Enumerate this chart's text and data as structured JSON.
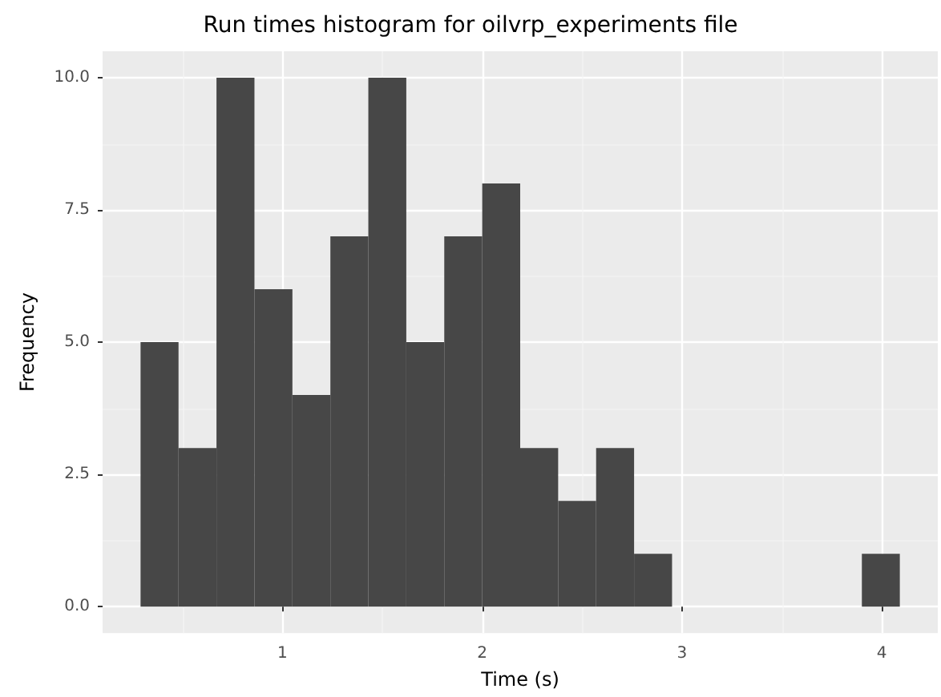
{
  "chart_data": {
    "type": "histogram",
    "title": "Run times histogram for oilvrp_experiments file",
    "xlabel": "Time (s)",
    "ylabel": "Frequency",
    "bins": [
      0.29,
      0.48,
      0.67,
      0.86,
      1.05,
      1.24,
      1.43,
      1.62,
      1.81,
      2.0,
      2.19,
      2.38,
      2.57,
      2.76,
      2.95,
      3.14,
      3.33,
      3.52,
      3.71,
      3.9,
      4.09
    ],
    "values": [
      5,
      3,
      10,
      6,
      4,
      7,
      10,
      5,
      7,
      8,
      3,
      2,
      3,
      1,
      0,
      0,
      0,
      0,
      0,
      1
    ],
    "color": "#474747",
    "xlim": [
      0.1,
      4.28
    ],
    "xticks": [
      1,
      2,
      3,
      4
    ],
    "ylim": [
      -0.5,
      10.5
    ],
    "yticks": [
      {
        "value": 0,
        "label": "0.0"
      },
      {
        "value": 2.5,
        "label": "2.5"
      },
      {
        "value": 5,
        "label": "5.0"
      },
      {
        "value": 7.5,
        "label": "7.5"
      },
      {
        "value": 10,
        "label": "10.0"
      }
    ],
    "grid": true
  }
}
